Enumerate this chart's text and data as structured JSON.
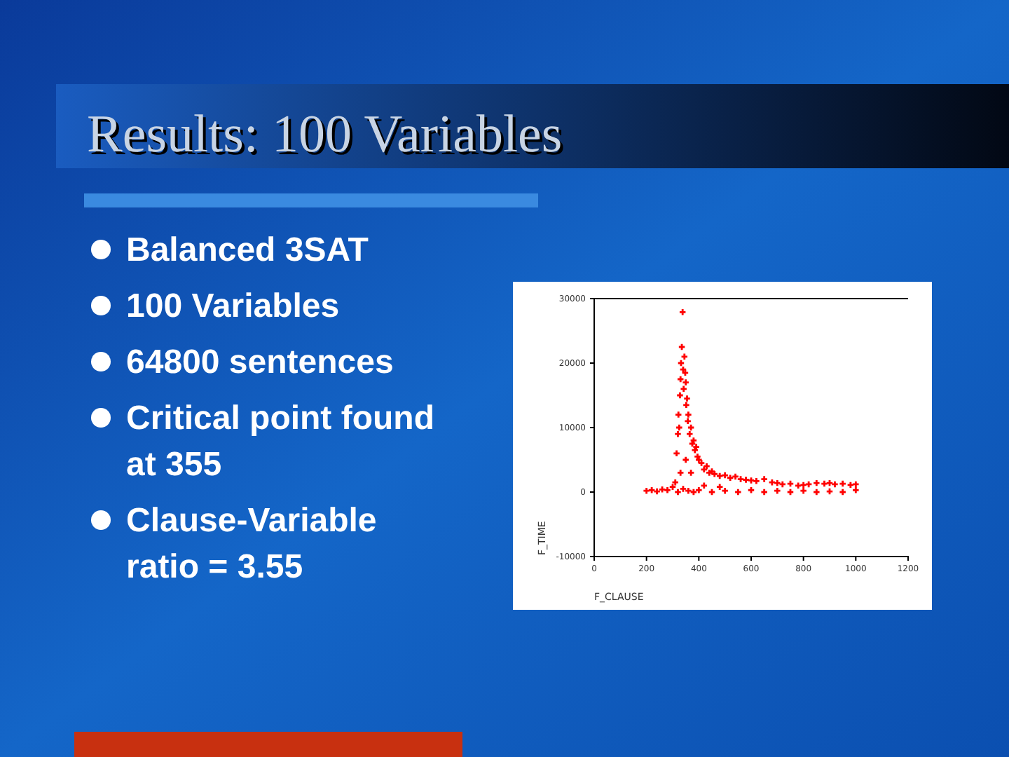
{
  "chart_data": {
    "type": "scatter",
    "title": "Results: 100 Variables",
    "annotations": [
      "Balanced 3SAT",
      "100 Variables",
      "64800 sentences",
      "Critical point found at 355",
      "Clause-Variable ratio = 3.55"
    ],
    "xlabel": "F_CLAUSE",
    "ylabel": "F_TIME",
    "xlim": [
      0,
      1200
    ],
    "xticks": [
      0,
      200,
      400,
      600,
      800,
      1000,
      1200
    ],
    "ylim": [
      -10000,
      30000
    ],
    "yticks": [
      -10000,
      0,
      10000,
      20000,
      30000
    ],
    "grid": false,
    "marker": "cross",
    "series": [
      {
        "color": "#ff0000",
        "x": [
          200,
          220,
          240,
          260,
          280,
          300,
          310,
          315,
          320,
          322,
          325,
          328,
          330,
          332,
          335,
          338,
          340,
          342,
          345,
          348,
          350,
          352,
          355,
          358,
          360,
          365,
          370,
          375,
          380,
          385,
          390,
          395,
          400,
          410,
          420,
          430,
          440,
          450,
          460,
          480,
          500,
          520,
          540,
          560,
          580,
          600,
          620,
          650,
          680,
          700,
          720,
          750,
          780,
          800,
          820,
          850,
          880,
          900,
          920,
          950,
          980,
          1000,
          320,
          340,
          360,
          380,
          400,
          450,
          500,
          550,
          600,
          650,
          700,
          750,
          800,
          850,
          900,
          950,
          1000,
          330,
          350,
          370,
          420,
          480
        ],
        "values": [
          200,
          300,
          100,
          400,
          300,
          800,
          1500,
          6000,
          9000,
          12000,
          10000,
          15000,
          17500,
          20000,
          22500,
          27900,
          19000,
          16000,
          21000,
          18500,
          17000,
          13500,
          14500,
          11000,
          12000,
          9000,
          10000,
          7500,
          8000,
          6500,
          7000,
          5500,
          5000,
          4500,
          3500,
          4000,
          3000,
          3200,
          2800,
          2500,
          2600,
          2200,
          2400,
          2000,
          1900,
          1800,
          1700,
          2000,
          1500,
          1400,
          1200,
          1300,
          1000,
          1100,
          1200,
          1400,
          1300,
          1400,
          1200,
          1300,
          1100,
          1200,
          0,
          500,
          200,
          0,
          300,
          0,
          200,
          0,
          300,
          0,
          200,
          0,
          200,
          0,
          100,
          0,
          300,
          3000,
          5000,
          3000,
          1000,
          800
        ]
      }
    ]
  }
}
